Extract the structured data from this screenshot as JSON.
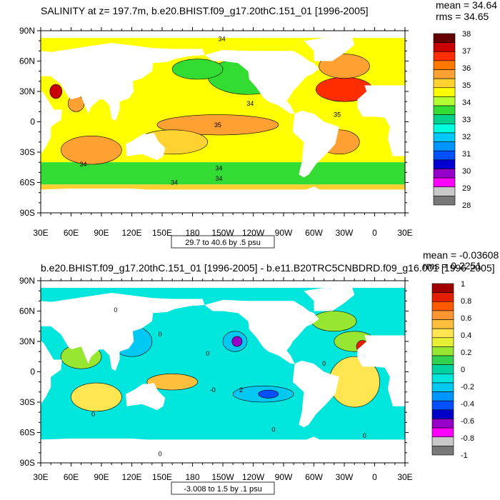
{
  "chart_data": [
    {
      "type": "heatmap",
      "title": "SALINITY at z= 197.7m, b.e20.BHIST.f09_g17.20thC.151_01 [1996-2005]",
      "stats": {
        "mean_label": "mean = 34.64",
        "rms_label": "rms = 34.65",
        "mean": 34.64,
        "rms": 34.65
      },
      "x_ticks": [
        "30E",
        "60E",
        "90E",
        "120E",
        "150E",
        "180",
        "150W",
        "120W",
        "90W",
        "60W",
        "30W",
        "0",
        "30E"
      ],
      "y_ticks": [
        "90N",
        "60N",
        "30N",
        "0",
        "30S",
        "60S",
        "90S"
      ],
      "xlim": [
        30,
        390
      ],
      "ylim": [
        -90,
        90
      ],
      "contour_info": "29.7 to 40.6 by .5 psu",
      "colorbar": {
        "labels": [
          "38",
          "37",
          "36",
          "35",
          "34",
          "33",
          "32",
          "31",
          "30",
          "29",
          "28"
        ],
        "colors": [
          "#640000",
          "#c80000",
          "#ff2d00",
          "#ff7800",
          "#ffa032",
          "#ffd232",
          "#ffff00",
          "#b4ff32",
          "#32dc32",
          "#00d28c",
          "#00ffdc",
          "#00c8ff",
          "#0096ff",
          "#0050ff",
          "#0000d2",
          "#9600c8",
          "#ff00ff",
          "#c8c8c8",
          "#787878"
        ]
      },
      "contour_labels": [
        {
          "text": "34",
          "lon": 209,
          "lat": 82
        },
        {
          "text": "34",
          "lon": 237,
          "lat": 18
        },
        {
          "text": "35",
          "lon": 205,
          "lat": -3
        },
        {
          "text": "34",
          "lon": 72,
          "lat": -42
        },
        {
          "text": "34",
          "lon": 206,
          "lat": -46
        },
        {
          "text": "34",
          "lon": 206,
          "lat": -56
        },
        {
          "text": "34",
          "lon": 162,
          "lat": -60
        },
        {
          "text": "35",
          "lon": 323,
          "lat": 7
        }
      ]
    },
    {
      "type": "heatmap",
      "title": "b.e20.BHIST.f09_g17.20thC.151_01 [1996-2005] - b.e11.B20TRC5CNBDRD.f09_g16.001 [1996-2005]",
      "stats": {
        "mean_label": "mean = -0.03608",
        "rms_label": "rms = 0.2251",
        "mean": -0.03608,
        "rms": 0.2251
      },
      "x_ticks": [
        "30E",
        "60E",
        "90E",
        "120E",
        "150E",
        "180",
        "150W",
        "120W",
        "90W",
        "60W",
        "30W",
        "0",
        "30E"
      ],
      "y_ticks": [
        "90N",
        "60N",
        "30N",
        "0",
        "30S",
        "60S",
        "90S"
      ],
      "xlim": [
        30,
        390
      ],
      "ylim": [
        -90,
        90
      ],
      "contour_info": "-3.008 to 1.5 by .1 psu",
      "colorbar": {
        "labels": [
          "1",
          "0.8",
          "0.6",
          "0.4",
          "0.2",
          "0",
          "-0.2",
          "-0.4",
          "-0.6",
          "-0.8",
          "-1"
        ],
        "colors": [
          "#a00000",
          "#e61e00",
          "#ff5a00",
          "#ff9632",
          "#ffbe3c",
          "#ffe650",
          "#e6f032",
          "#96e632",
          "#32d250",
          "#00d2a0",
          "#00e6dc",
          "#00c8f0",
          "#0096ff",
          "#0050ff",
          "#0000c8",
          "#9600c8",
          "#ff00ff",
          "#c8c8c8",
          "#787878"
        ]
      },
      "contour_labels": [
        {
          "text": "0",
          "lon": 104,
          "lat": 61
        },
        {
          "text": "0",
          "lon": 148,
          "lat": 37
        },
        {
          "text": "0",
          "lon": 195,
          "lat": 18
        },
        {
          "text": "-0",
          "lon": 200,
          "lat": -18
        },
        {
          "text": "0",
          "lon": 82,
          "lat": -42
        },
        {
          "text": "0",
          "lon": 260,
          "lat": -57
        },
        {
          "text": "0",
          "lon": 350,
          "lat": -63
        },
        {
          "text": "0",
          "lon": 148,
          "lat": -81
        },
        {
          "text": "2",
          "lon": 228,
          "lat": -18
        },
        {
          "text": "0",
          "lon": 310,
          "lat": 8
        }
      ]
    }
  ]
}
